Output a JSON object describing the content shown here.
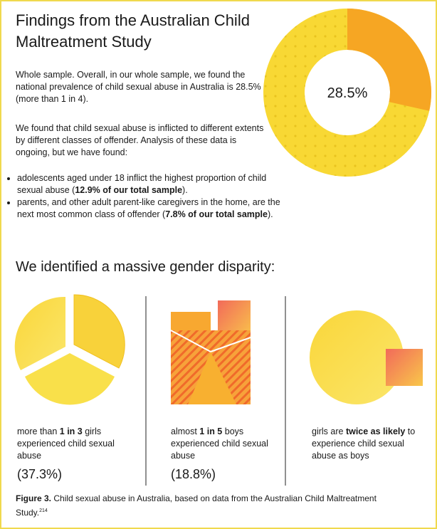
{
  "title": "Findings from the Australian Child Maltreatment Study",
  "intro": [
    "Whole sample. Overall, in our whole sample, we found the national prevalence of child sexual abuse in Australia is 28.5% (more than 1 in 4).",
    "We found that child sexual abuse is inflicted to different extents by different classes of offender. Analysis of these data is ongoing, but we have found:"
  ],
  "bullets": [
    [
      "adolescents aged under 18 inflict the highest proportion of child sexual abuse (",
      "12.9% of our total sample",
      ")."
    ],
    [
      "parents, and other adult parent-like caregivers in the home, are the next most common class of offender (",
      "7.8% of our total sample",
      ")."
    ]
  ],
  "donut": {
    "value": 28.5,
    "label": "28.5%"
  },
  "heading": "We identified a massive gender disparity:",
  "panels": [
    {
      "text": [
        "more than ",
        "1 in 3",
        " girls experienced child sexual abuse"
      ],
      "stat": "(37.3%)"
    },
    {
      "text": [
        "almost ",
        "1 in 5",
        " boys experienced child sexual abuse"
      ],
      "stat": "(18.8%)"
    },
    {
      "text": [
        "girls are ",
        "twice as likely",
        " to experience child sexual abuse as boys"
      ]
    }
  ],
  "caption": [
    "Figure 3.",
    " Child sexual abuse in Australia, based on data from the Australian Child Maltreatment Study.",
    "214"
  ]
}
